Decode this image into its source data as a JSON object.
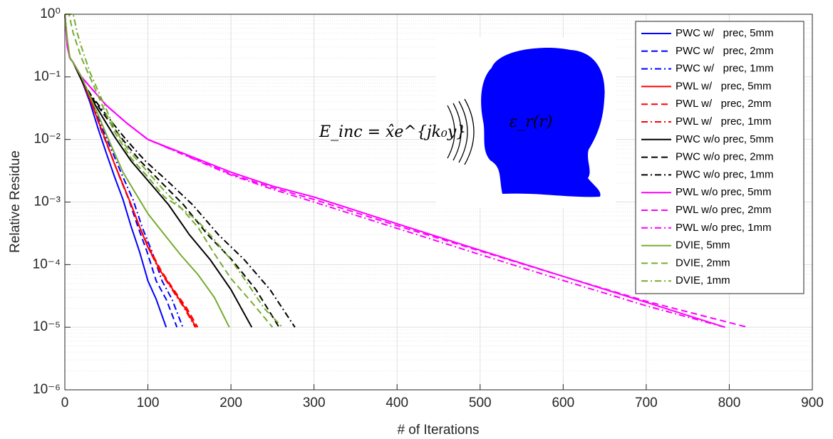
{
  "chart_data": {
    "type": "line",
    "x_label": "# of Iterations",
    "y_label": "Relative Residue",
    "annotations": [
      "E_inc = x̂e^{jk₀y}",
      "ε_r(r)"
    ],
    "xlim": [
      0,
      900
    ],
    "xticks": [
      0,
      100,
      200,
      300,
      400,
      500,
      600,
      700,
      800,
      900
    ],
    "ylim": [
      1e-06,
      1
    ],
    "yscale": "log",
    "yticks": [
      {
        "value": 1e-06,
        "label": "10⁻⁶"
      },
      {
        "value": 1e-05,
        "label": "10⁻⁵"
      },
      {
        "value": 0.0001,
        "label": "10⁻⁴"
      },
      {
        "value": 0.001,
        "label": "10⁻³"
      },
      {
        "value": 0.01,
        "label": "10⁻²"
      },
      {
        "value": 0.1,
        "label": "10⁻¹"
      },
      {
        "value": 1,
        "label": "10⁰"
      }
    ],
    "grid": true,
    "minor_grid": true,
    "legend": "upper right",
    "series": [
      {
        "name": "PWC w/   prec, 5mm",
        "color": "#0000ff",
        "dash": "solid",
        "x": [
          0,
          3,
          6,
          10,
          20,
          30,
          40,
          50,
          60,
          70,
          80,
          90,
          100,
          110,
          122
        ],
        "values": [
          1,
          0.35,
          0.2,
          0.17,
          0.09,
          0.04,
          0.015,
          0.006,
          0.0025,
          0.0011,
          0.0004,
          0.00016,
          5.5e-05,
          2.8e-05,
          1e-05
        ]
      },
      {
        "name": "PWC w/   prec, 2mm",
        "color": "#0000ff",
        "dash": "dashed",
        "x": [
          0,
          3,
          6,
          10,
          20,
          32,
          43,
          55,
          66,
          77,
          88,
          99,
          110,
          122,
          135
        ],
        "values": [
          1,
          0.35,
          0.2,
          0.17,
          0.09,
          0.04,
          0.015,
          0.006,
          0.0025,
          0.0011,
          0.0004,
          0.00016,
          5.5e-05,
          2.8e-05,
          1e-05
        ]
      },
      {
        "name": "PWC w/   prec, 1mm",
        "color": "#0000ff",
        "dash": "dashdot",
        "x": [
          0,
          3,
          6,
          10,
          20,
          33,
          45,
          58,
          70,
          82,
          93,
          105,
          117,
          129,
          142
        ],
        "values": [
          1,
          0.35,
          0.2,
          0.17,
          0.09,
          0.04,
          0.015,
          0.006,
          0.0025,
          0.0011,
          0.0004,
          0.00016,
          5.5e-05,
          2.8e-05,
          1e-05
        ]
      },
      {
        "name": "PWL w/   prec, 5mm",
        "color": "#ff0000",
        "dash": "solid",
        "x": [
          0,
          3,
          6,
          10,
          20,
          30,
          40,
          50,
          60,
          70,
          80,
          90,
          100,
          115,
          130,
          145,
          158
        ],
        "values": [
          1,
          0.35,
          0.2,
          0.17,
          0.09,
          0.045,
          0.02,
          0.009,
          0.004,
          0.0019,
          0.0009,
          0.0004,
          0.00019,
          8e-05,
          4e-05,
          2e-05,
          1e-05
        ]
      },
      {
        "name": "PWL w/   prec, 2mm",
        "color": "#ff0000",
        "dash": "dashed",
        "x": [
          0,
          3,
          6,
          10,
          20,
          30,
          40,
          50,
          60,
          70,
          80,
          90,
          101,
          116,
          131,
          147,
          160
        ],
        "values": [
          1,
          0.35,
          0.2,
          0.17,
          0.09,
          0.045,
          0.02,
          0.009,
          0.004,
          0.0019,
          0.0009,
          0.0004,
          0.00019,
          8e-05,
          4e-05,
          2e-05,
          1e-05
        ]
      },
      {
        "name": "PWL w/   prec, 1mm",
        "color": "#ff0000",
        "dash": "dashdot",
        "x": [
          0,
          3,
          6,
          10,
          20,
          30,
          40,
          50,
          60,
          70,
          80,
          90,
          100,
          114,
          129,
          144,
          157
        ],
        "values": [
          1,
          0.35,
          0.2,
          0.17,
          0.09,
          0.045,
          0.02,
          0.009,
          0.004,
          0.0019,
          0.0009,
          0.0004,
          0.00019,
          8e-05,
          4e-05,
          2e-05,
          1e-05
        ]
      },
      {
        "name": "PWC w/o prec, 5mm",
        "color": "#000000",
        "dash": "solid",
        "x": [
          0,
          3,
          6,
          10,
          20,
          30,
          40,
          50,
          60,
          70,
          80,
          100,
          125,
          150,
          175,
          200,
          225
        ],
        "values": [
          1,
          0.35,
          0.2,
          0.17,
          0.09,
          0.05,
          0.03,
          0.018,
          0.011,
          0.007,
          0.0045,
          0.0022,
          0.0009,
          0.0003,
          0.00012,
          4e-05,
          1e-05
        ]
      },
      {
        "name": "PWC w/o prec, 2mm",
        "color": "#000000",
        "dash": "dashed",
        "x": [
          0,
          3,
          6,
          10,
          20,
          31,
          43,
          55,
          67,
          79,
          91,
          114,
          143,
          172,
          201,
          230,
          258
        ],
        "values": [
          1,
          0.35,
          0.2,
          0.17,
          0.09,
          0.05,
          0.03,
          0.018,
          0.011,
          0.007,
          0.0045,
          0.0022,
          0.0009,
          0.0003,
          0.00012,
          4e-05,
          1e-05
        ]
      },
      {
        "name": "PWC w/o prec, 1mm",
        "color": "#000000",
        "dash": "dashdot",
        "x": [
          0,
          3,
          6,
          10,
          20,
          32,
          45,
          58,
          71,
          84,
          97,
          123,
          154,
          185,
          216,
          247,
          277
        ],
        "values": [
          1,
          0.35,
          0.2,
          0.17,
          0.09,
          0.05,
          0.03,
          0.018,
          0.011,
          0.007,
          0.0045,
          0.0022,
          0.0009,
          0.0003,
          0.00012,
          4e-05,
          1e-05
        ]
      },
      {
        "name": "PWL w/o prec, 5mm",
        "color": "#ff00ff",
        "dash": "solid",
        "x": [
          0,
          3,
          6,
          10,
          20,
          30,
          50,
          75,
          100,
          150,
          200,
          250,
          300,
          400,
          500,
          600,
          700,
          795
        ],
        "values": [
          1,
          0.3,
          0.2,
          0.17,
          0.1,
          0.07,
          0.035,
          0.018,
          0.01,
          0.0055,
          0.003,
          0.0018,
          0.0012,
          0.00045,
          0.00017,
          6.5e-05,
          2.5e-05,
          1e-05
        ]
      },
      {
        "name": "PWL w/o prec, 2mm",
        "color": "#ff00ff",
        "dash": "dashed",
        "x": [
          0,
          3,
          6,
          10,
          20,
          30,
          50,
          75,
          100,
          150,
          200,
          250,
          300,
          400,
          500,
          600,
          700,
          822
        ],
        "values": [
          1,
          0.3,
          0.2,
          0.17,
          0.1,
          0.07,
          0.035,
          0.018,
          0.01,
          0.0053,
          0.0028,
          0.0017,
          0.0011,
          0.00042,
          0.000165,
          6.5e-05,
          2.6e-05,
          1e-05
        ]
      },
      {
        "name": "PWL w/o prec, 1mm",
        "color": "#ff00ff",
        "dash": "dashdot",
        "x": [
          0,
          3,
          6,
          10,
          20,
          30,
          50,
          75,
          100,
          150,
          200,
          250,
          300,
          400,
          500,
          600,
          700,
          795
        ],
        "values": [
          1,
          0.3,
          0.2,
          0.17,
          0.1,
          0.07,
          0.035,
          0.018,
          0.01,
          0.0052,
          0.0027,
          0.0016,
          0.001,
          0.00038,
          0.000145,
          5.6e-05,
          2.2e-05,
          1e-05
        ]
      },
      {
        "name": "DVIE, 5mm",
        "color": "#77ac30",
        "dash": "solid",
        "x": [
          0,
          3,
          6,
          10,
          20,
          30,
          40,
          50,
          60,
          70,
          80,
          100,
          120,
          140,
          160,
          180,
          198
        ],
        "values": [
          1,
          0.4,
          0.2,
          0.17,
          0.1,
          0.05,
          0.025,
          0.012,
          0.006,
          0.003,
          0.0018,
          0.00065,
          0.0003,
          0.00014,
          7e-05,
          3e-05,
          1e-05
        ]
      },
      {
        "name": "DVIE, 2mm",
        "color": "#77ac30",
        "dash": "dashed",
        "x": [
          0,
          5,
          10,
          20,
          30,
          40,
          50,
          60,
          70,
          80,
          100,
          120,
          140,
          160,
          180,
          200,
          225,
          250
        ],
        "values": [
          1,
          1,
          0.5,
          0.2,
          0.1,
          0.05,
          0.025,
          0.013,
          0.008,
          0.005,
          0.0025,
          0.0012,
          0.0008,
          0.0004,
          0.00015,
          6e-05,
          2.5e-05,
          1e-05
        ]
      },
      {
        "name": "DVIE, 1mm",
        "color": "#77ac30",
        "dash": "dashdot",
        "x": [
          0,
          5,
          10,
          15,
          20,
          30,
          40,
          50,
          60,
          70,
          80,
          100,
          120,
          140,
          160,
          180,
          200,
          220,
          240,
          262
        ],
        "values": [
          1,
          1,
          1,
          0.5,
          0.3,
          0.12,
          0.06,
          0.03,
          0.015,
          0.009,
          0.006,
          0.003,
          0.0015,
          0.0008,
          0.0005,
          0.00025,
          0.00012,
          5e-05,
          2e-05,
          1e-05
        ]
      }
    ]
  }
}
